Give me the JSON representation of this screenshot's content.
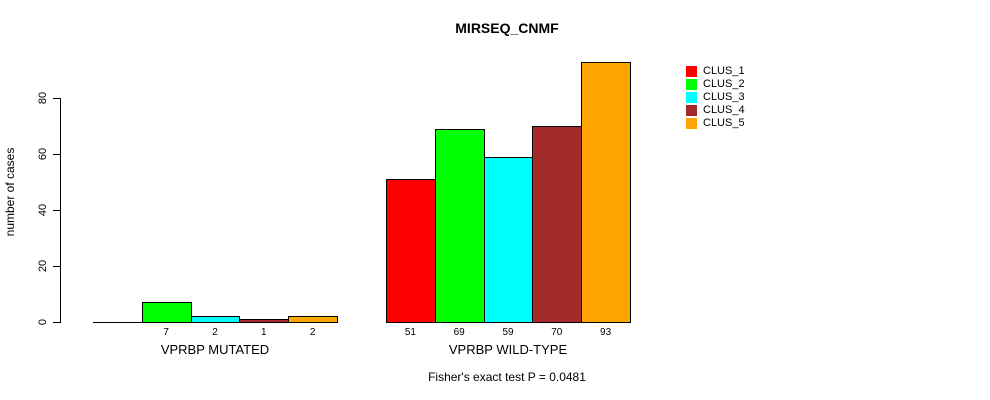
{
  "chart_data": {
    "type": "bar",
    "title": "MIRSEQ_CNMF",
    "ylabel": "number of cases",
    "xlabel": "",
    "ylim": [
      0,
      93
    ],
    "yticks": [
      0,
      20,
      40,
      60,
      80
    ],
    "grid": false,
    "legend_position": "right",
    "series": [
      {
        "name": "CLUS_1",
        "color": "#FF0000"
      },
      {
        "name": "CLUS_2",
        "color": "#00FF00"
      },
      {
        "name": "CLUS_3",
        "color": "#00FFFF"
      },
      {
        "name": "CLUS_4",
        "color": "#A52A2A"
      },
      {
        "name": "CLUS_5",
        "color": "#FFA500"
      }
    ],
    "groups": [
      {
        "label": "VPRBP MUTATED",
        "values": [
          0,
          7,
          2,
          1,
          2
        ],
        "value_labels": [
          "",
          "7",
          "2",
          "1",
          "2"
        ]
      },
      {
        "label": "VPRBP WILD-TYPE",
        "values": [
          51,
          69,
          59,
          70,
          93
        ],
        "value_labels": [
          "51",
          "69",
          "59",
          "70",
          "93"
        ]
      }
    ],
    "annotation": "Fisher's exact test P = 0.0481"
  }
}
